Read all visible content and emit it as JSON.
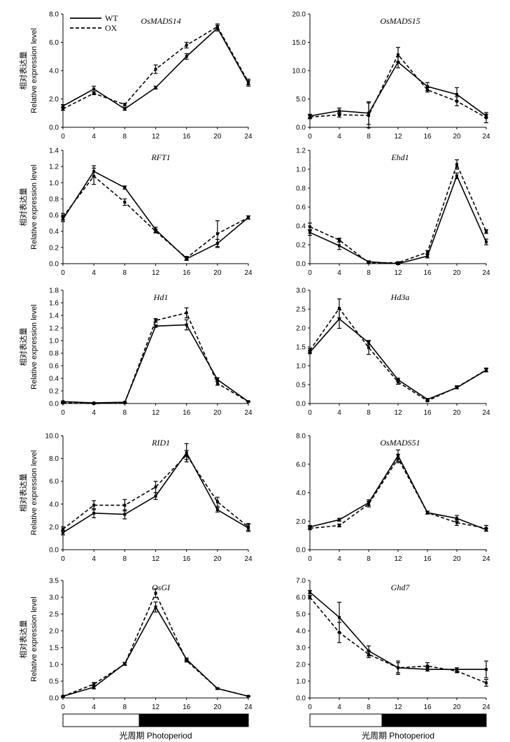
{
  "y_label_cn": "相对表达量",
  "y_label_en": "Relative expression level",
  "x_label": "光周期 Photoperiod",
  "legend": [
    "WT",
    "OX"
  ],
  "chart_data": [
    {
      "type": "line",
      "title": "OsMADS14",
      "x": [
        0,
        4,
        8,
        12,
        16,
        20,
        24
      ],
      "ylim": [
        0,
        8
      ],
      "ystep": 2,
      "ydec": 1,
      "series": [
        {
          "name": "WT",
          "values": [
            1.5,
            2.7,
            1.3,
            2.8,
            5.0,
            7.0,
            3.1
          ],
          "err": [
            0.1,
            0.2,
            0.1,
            0.1,
            0.2,
            0.2,
            0.2
          ]
        },
        {
          "name": "OX",
          "values": [
            1.3,
            2.4,
            1.6,
            4.1,
            5.8,
            7.1,
            3.2
          ],
          "err": [
            0.1,
            0.1,
            0.1,
            0.3,
            0.2,
            0.2,
            0.2
          ]
        }
      ]
    },
    {
      "type": "line",
      "title": "OsMADS15",
      "x": [
        0,
        4,
        8,
        12,
        16,
        20,
        24
      ],
      "ylim": [
        0,
        20
      ],
      "ystep": 5,
      "ydec": 1,
      "series": [
        {
          "name": "WT",
          "values": [
            2.0,
            2.9,
            2.5,
            11.5,
            7.2,
            5.8,
            2.0
          ],
          "err": [
            0.3,
            0.5,
            2.0,
            1.0,
            0.7,
            1.2,
            0.3
          ]
        },
        {
          "name": "OX",
          "values": [
            1.8,
            2.2,
            2.1,
            12.8,
            6.6,
            4.6,
            1.7
          ],
          "err": [
            0.3,
            0.4,
            2.2,
            1.3,
            0.4,
            0.8,
            0.9
          ]
        }
      ]
    },
    {
      "type": "line",
      "title": "RFT1",
      "x": [
        0,
        4,
        8,
        12,
        16,
        20,
        24
      ],
      "ylim": [
        0,
        1.4
      ],
      "ystep": 0.2,
      "ydec": 1,
      "series": [
        {
          "name": "WT",
          "values": [
            0.55,
            1.14,
            0.94,
            0.42,
            0.06,
            0.25,
            0.57
          ],
          "err": [
            0.03,
            0.07,
            0.02,
            0.03,
            0.02,
            0.05,
            0.02
          ]
        },
        {
          "name": "OX",
          "values": [
            0.58,
            1.08,
            0.76,
            0.4,
            0.07,
            0.37,
            0.57
          ],
          "err": [
            0.04,
            0.1,
            0.04,
            0.02,
            0.02,
            0.16,
            0.02
          ]
        }
      ]
    },
    {
      "type": "line",
      "title": "Ehd1",
      "x": [
        0,
        4,
        8,
        12,
        16,
        20,
        24
      ],
      "ylim": [
        0,
        1.2
      ],
      "ystep": 0.2,
      "ydec": 1,
      "series": [
        {
          "name": "WT",
          "values": [
            0.33,
            0.19,
            0.02,
            0.0,
            0.08,
            0.93,
            0.23
          ],
          "err": [
            0.03,
            0.04,
            0.01,
            0.01,
            0.02,
            0.03,
            0.03
          ]
        },
        {
          "name": "OX",
          "values": [
            0.39,
            0.25,
            0.01,
            0.01,
            0.12,
            1.05,
            0.34
          ],
          "err": [
            0.04,
            0.02,
            0.01,
            0.01,
            0.02,
            0.05,
            0.02
          ]
        }
      ]
    },
    {
      "type": "line",
      "title": "Hd1",
      "x": [
        0,
        4,
        8,
        12,
        16,
        20,
        24
      ],
      "ylim": [
        0,
        1.8
      ],
      "ystep": 0.2,
      "ydec": 1,
      "series": [
        {
          "name": "WT",
          "values": [
            0.03,
            0.01,
            0.02,
            1.23,
            1.25,
            0.38,
            0.03
          ],
          "err": [
            0.005,
            0.005,
            0.005,
            0.02,
            0.08,
            0.03,
            0.005
          ]
        },
        {
          "name": "OX",
          "values": [
            0.01,
            0.0,
            0.01,
            1.32,
            1.44,
            0.32,
            0.03
          ],
          "err": [
            0.005,
            0.005,
            0.005,
            0.03,
            0.08,
            0.03,
            0.005
          ]
        }
      ]
    },
    {
      "type": "line",
      "title": "Hd3a",
      "x": [
        0,
        4,
        8,
        12,
        16,
        20,
        24
      ],
      "ylim": [
        0,
        3.0
      ],
      "ystep": 0.5,
      "ydec": 1,
      "series": [
        {
          "name": "WT",
          "values": [
            1.36,
            2.24,
            1.61,
            0.63,
            0.11,
            0.42,
            0.88
          ],
          "err": [
            0.04,
            0.25,
            0.06,
            0.04,
            0.02,
            0.03,
            0.04
          ]
        },
        {
          "name": "OX",
          "values": [
            1.41,
            2.52,
            1.48,
            0.57,
            0.07,
            0.43,
            0.89
          ],
          "err": [
            0.05,
            0.25,
            0.18,
            0.06,
            0.02,
            0.04,
            0.05
          ]
        }
      ]
    },
    {
      "type": "line",
      "title": "RID1",
      "x": [
        0,
        4,
        8,
        12,
        16,
        20,
        24
      ],
      "ylim": [
        0,
        10
      ],
      "ystep": 2,
      "ydec": 1,
      "series": [
        {
          "name": "WT",
          "values": [
            1.5,
            3.2,
            3.1,
            4.7,
            8.5,
            3.5,
            1.9
          ],
          "err": [
            0.2,
            0.4,
            0.4,
            0.3,
            0.8,
            0.2,
            0.3
          ]
        },
        {
          "name": "OX",
          "values": [
            1.8,
            3.9,
            3.9,
            5.5,
            8.3,
            4.2,
            2.0
          ],
          "err": [
            0.2,
            0.4,
            0.5,
            0.5,
            0.4,
            0.4,
            0.3
          ]
        }
      ]
    },
    {
      "type": "line",
      "title": "OsMADS51",
      "x": [
        0,
        4,
        8,
        12,
        16,
        20,
        24
      ],
      "ylim": [
        0,
        8
      ],
      "ystep": 2,
      "ydec": 1,
      "series": [
        {
          "name": "WT",
          "values": [
            1.6,
            2.1,
            3.3,
            6.6,
            2.6,
            2.2,
            1.4
          ],
          "err": [
            0.1,
            0.1,
            0.2,
            0.4,
            0.1,
            0.2,
            0.1
          ]
        },
        {
          "name": "OX",
          "values": [
            1.5,
            1.7,
            3.2,
            6.4,
            2.6,
            1.9,
            1.5
          ],
          "err": [
            0.1,
            0.1,
            0.2,
            0.3,
            0.1,
            0.2,
            0.2
          ]
        }
      ]
    },
    {
      "type": "line",
      "title": "OsGI",
      "x": [
        0,
        4,
        8,
        12,
        16,
        20,
        24
      ],
      "ylim": [
        0,
        3.5
      ],
      "ystep": 0.5,
      "ydec": 1,
      "series": [
        {
          "name": "WT",
          "values": [
            0.05,
            0.32,
            1.02,
            2.71,
            1.15,
            0.28,
            0.05
          ],
          "err": [
            0.01,
            0.05,
            0.04,
            0.15,
            0.04,
            0.02,
            0.01
          ]
        },
        {
          "name": "OX",
          "values": [
            0.05,
            0.41,
            1.01,
            3.12,
            1.11,
            0.28,
            0.05
          ],
          "err": [
            0.01,
            0.05,
            0.04,
            0.13,
            0.04,
            0.02,
            0.01
          ]
        }
      ]
    },
    {
      "type": "line",
      "title": "Ghd7",
      "x": [
        0,
        4,
        8,
        12,
        16,
        20,
        24
      ],
      "ylim": [
        0,
        7
      ],
      "ystep": 1,
      "ydec": 1,
      "series": [
        {
          "name": "WT",
          "values": [
            6.3,
            4.8,
            2.8,
            1.8,
            1.7,
            1.7,
            1.7
          ],
          "err": [
            0.1,
            0.9,
            0.3,
            0.4,
            0.1,
            0.1,
            0.5
          ]
        },
        {
          "name": "OX",
          "values": [
            6.0,
            3.9,
            2.6,
            1.8,
            1.9,
            1.6,
            0.9
          ],
          "err": [
            0.1,
            0.6,
            0.2,
            0.3,
            0.2,
            0.1,
            0.2
          ]
        }
      ]
    }
  ]
}
